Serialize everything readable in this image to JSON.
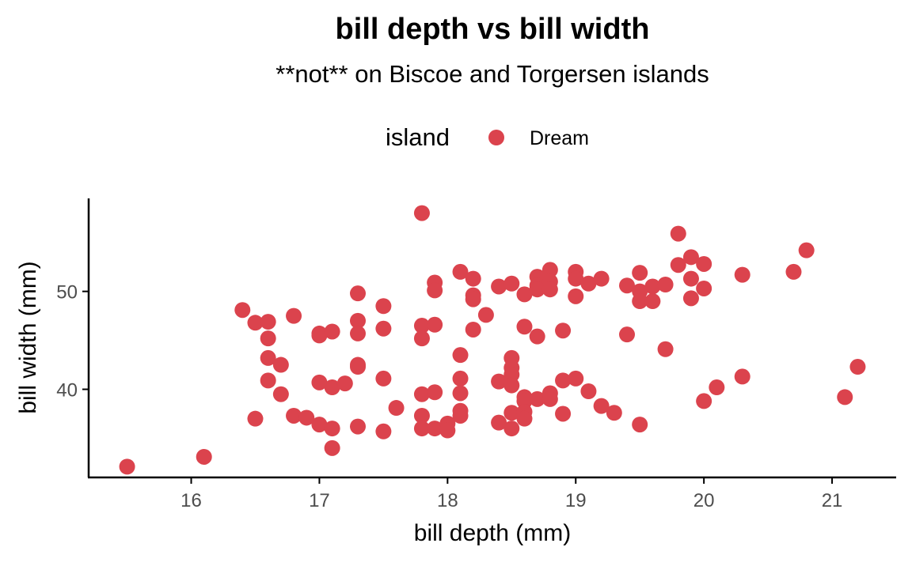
{
  "chart_data": {
    "type": "scatter",
    "title": "bill depth vs bill width",
    "subtitle": "**not** on Biscoe and Torgersen islands",
    "xlabel": "bill depth (mm)",
    "ylabel": "bill width (mm)",
    "xlim": [
      15.2,
      21.5
    ],
    "ylim": [
      31.0,
      59.5
    ],
    "x_ticks": [
      16,
      17,
      18,
      19,
      20,
      21
    ],
    "y_ticks": [
      40,
      50
    ],
    "grid": false,
    "legend": {
      "title": "island",
      "placement": "top",
      "entries": [
        "Dream"
      ]
    },
    "colors": {
      "Dream": "#DB434D"
    },
    "series": [
      {
        "name": "Dream",
        "points": [
          [
            15.5,
            32.1
          ],
          [
            16.1,
            33.1
          ],
          [
            16.4,
            48.1
          ],
          [
            16.5,
            46.8
          ],
          [
            16.5,
            37.0
          ],
          [
            16.6,
            46.9
          ],
          [
            16.6,
            45.2
          ],
          [
            16.6,
            43.2
          ],
          [
            16.6,
            40.9
          ],
          [
            16.7,
            42.5
          ],
          [
            16.7,
            39.5
          ],
          [
            16.8,
            47.5
          ],
          [
            16.8,
            37.3
          ],
          [
            16.9,
            37.1
          ],
          [
            17.0,
            45.7
          ],
          [
            17.0,
            45.5
          ],
          [
            17.0,
            40.7
          ],
          [
            17.0,
            36.4
          ],
          [
            17.1,
            45.9
          ],
          [
            17.1,
            40.2
          ],
          [
            17.1,
            36.0
          ],
          [
            17.1,
            34.0
          ],
          [
            17.2,
            40.6
          ],
          [
            17.3,
            49.8
          ],
          [
            17.3,
            47.0
          ],
          [
            17.3,
            45.7
          ],
          [
            17.3,
            42.5
          ],
          [
            17.3,
            42.3
          ],
          [
            17.3,
            36.2
          ],
          [
            17.5,
            48.5
          ],
          [
            17.5,
            46.2
          ],
          [
            17.5,
            41.1
          ],
          [
            17.5,
            35.7
          ],
          [
            17.6,
            38.1
          ],
          [
            17.8,
            58.0
          ],
          [
            17.8,
            46.5
          ],
          [
            17.8,
            45.2
          ],
          [
            17.8,
            39.5
          ],
          [
            17.8,
            37.3
          ],
          [
            17.8,
            36.0
          ],
          [
            17.9,
            50.9
          ],
          [
            17.9,
            50.1
          ],
          [
            17.9,
            46.6
          ],
          [
            17.9,
            39.7
          ],
          [
            17.9,
            36.0
          ],
          [
            18.0,
            36.5
          ],
          [
            18.0,
            35.8
          ],
          [
            18.1,
            52.0
          ],
          [
            18.1,
            43.5
          ],
          [
            18.1,
            41.1
          ],
          [
            18.1,
            39.6
          ],
          [
            18.1,
            37.8
          ],
          [
            18.1,
            37.3
          ],
          [
            18.2,
            51.3
          ],
          [
            18.2,
            49.6
          ],
          [
            18.2,
            49.2
          ],
          [
            18.2,
            46.1
          ],
          [
            18.3,
            47.6
          ],
          [
            18.4,
            50.5
          ],
          [
            18.4,
            40.8
          ],
          [
            18.4,
            36.6
          ],
          [
            18.5,
            50.8
          ],
          [
            18.5,
            43.2
          ],
          [
            18.5,
            42.2
          ],
          [
            18.5,
            41.5
          ],
          [
            18.5,
            40.4
          ],
          [
            18.5,
            37.6
          ],
          [
            18.5,
            36.0
          ],
          [
            18.6,
            49.7
          ],
          [
            18.6,
            46.4
          ],
          [
            18.6,
            39.2
          ],
          [
            18.6,
            38.8
          ],
          [
            18.6,
            37.7
          ],
          [
            18.6,
            37.0
          ],
          [
            18.7,
            51.5
          ],
          [
            18.7,
            50.6
          ],
          [
            18.7,
            50.2
          ],
          [
            18.7,
            45.4
          ],
          [
            18.7,
            39.0
          ],
          [
            18.8,
            52.2
          ],
          [
            18.8,
            51.0
          ],
          [
            18.8,
            50.2
          ],
          [
            18.8,
            39.6
          ],
          [
            18.8,
            39.0
          ],
          [
            18.9,
            46.0
          ],
          [
            18.9,
            40.9
          ],
          [
            18.9,
            37.5
          ],
          [
            19.0,
            52.0
          ],
          [
            19.0,
            51.3
          ],
          [
            19.0,
            49.5
          ],
          [
            19.0,
            41.1
          ],
          [
            19.1,
            50.8
          ],
          [
            19.1,
            39.8
          ],
          [
            19.2,
            51.3
          ],
          [
            19.2,
            38.3
          ],
          [
            19.3,
            37.6
          ],
          [
            19.4,
            50.6
          ],
          [
            19.4,
            45.6
          ],
          [
            19.5,
            51.9
          ],
          [
            19.5,
            50.0
          ],
          [
            19.5,
            49.0
          ],
          [
            19.5,
            36.4
          ],
          [
            19.6,
            50.5
          ],
          [
            19.6,
            49.0
          ],
          [
            19.7,
            50.7
          ],
          [
            19.7,
            44.1
          ],
          [
            19.8,
            55.9
          ],
          [
            19.8,
            52.7
          ],
          [
            19.9,
            53.5
          ],
          [
            19.9,
            51.3
          ],
          [
            19.9,
            49.3
          ],
          [
            20.0,
            52.8
          ],
          [
            20.0,
            50.3
          ],
          [
            20.0,
            38.8
          ],
          [
            20.1,
            40.2
          ],
          [
            20.3,
            51.7
          ],
          [
            20.3,
            41.3
          ],
          [
            20.7,
            52.0
          ],
          [
            20.8,
            54.2
          ],
          [
            21.1,
            39.2
          ],
          [
            21.2,
            42.3
          ]
        ]
      }
    ]
  }
}
